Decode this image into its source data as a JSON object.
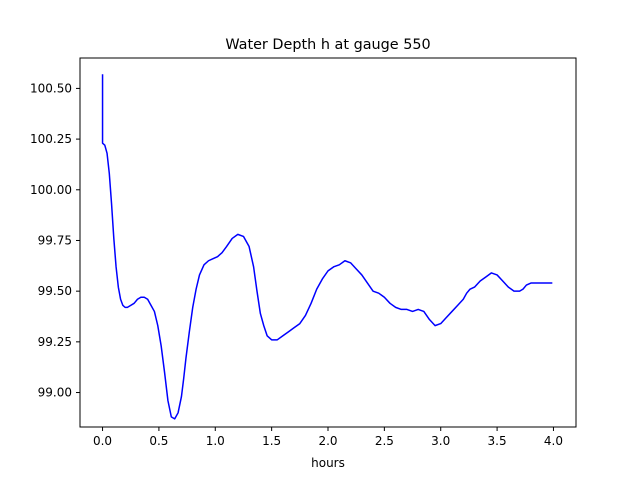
{
  "chart_data": {
    "type": "line",
    "title": "Water Depth h at gauge 550",
    "xlabel": "hours",
    "ylabel": "",
    "xlim": [
      -0.2,
      4.2
    ],
    "ylim": [
      98.83,
      100.65
    ],
    "xticks": [
      0.0,
      0.5,
      1.0,
      1.5,
      2.0,
      2.5,
      3.0,
      3.5,
      4.0
    ],
    "xtick_labels": [
      "0.0",
      "0.5",
      "1.0",
      "1.5",
      "2.0",
      "2.5",
      "3.0",
      "3.5",
      "4.0"
    ],
    "yticks": [
      99.0,
      99.25,
      99.5,
      99.75,
      100.0,
      100.25,
      100.5
    ],
    "ytick_labels": [
      "99.00",
      "99.25",
      "99.50",
      "99.75",
      "100.00",
      "100.25",
      "100.50"
    ],
    "grid": false,
    "series": [
      {
        "color": "#0000ff",
        "x": [
          0.0,
          0.0,
          0.0,
          0.02,
          0.04,
          0.06,
          0.08,
          0.1,
          0.12,
          0.14,
          0.16,
          0.18,
          0.2,
          0.22,
          0.25,
          0.28,
          0.31,
          0.34,
          0.37,
          0.4,
          0.43,
          0.46,
          0.49,
          0.52,
          0.55,
          0.58,
          0.61,
          0.64,
          0.67,
          0.7,
          0.72,
          0.74,
          0.77,
          0.8,
          0.83,
          0.86,
          0.9,
          0.94,
          0.98,
          1.02,
          1.06,
          1.1,
          1.15,
          1.2,
          1.25,
          1.3,
          1.34,
          1.37,
          1.4,
          1.43,
          1.46,
          1.5,
          1.55,
          1.6,
          1.65,
          1.7,
          1.75,
          1.8,
          1.85,
          1.9,
          1.95,
          2.0,
          2.05,
          2.1,
          2.15,
          2.2,
          2.25,
          2.3,
          2.35,
          2.4,
          2.45,
          2.5,
          2.55,
          2.6,
          2.65,
          2.7,
          2.75,
          2.8,
          2.85,
          2.9,
          2.95,
          3.0,
          3.05,
          3.1,
          3.15,
          3.2,
          3.23,
          3.26,
          3.3,
          3.35,
          3.4,
          3.45,
          3.5,
          3.55,
          3.6,
          3.65,
          3.7,
          3.73,
          3.76,
          3.8,
          3.84,
          3.88,
          3.92,
          3.96,
          3.99
        ],
        "y": [
          100.57,
          100.23,
          100.23,
          100.22,
          100.18,
          100.08,
          99.93,
          99.76,
          99.62,
          99.52,
          99.46,
          99.43,
          99.42,
          99.42,
          99.43,
          99.44,
          99.46,
          99.47,
          99.47,
          99.46,
          99.43,
          99.4,
          99.33,
          99.23,
          99.1,
          98.96,
          98.88,
          98.87,
          98.9,
          98.98,
          99.07,
          99.17,
          99.3,
          99.42,
          99.51,
          99.58,
          99.63,
          99.65,
          99.66,
          99.67,
          99.69,
          99.72,
          99.76,
          99.78,
          99.77,
          99.72,
          99.62,
          99.5,
          99.39,
          99.33,
          99.28,
          99.26,
          99.26,
          99.28,
          99.3,
          99.32,
          99.34,
          99.38,
          99.44,
          99.51,
          99.56,
          99.6,
          99.62,
          99.63,
          99.65,
          99.64,
          99.61,
          99.58,
          99.54,
          99.5,
          99.49,
          99.47,
          99.44,
          99.42,
          99.41,
          99.41,
          99.4,
          99.41,
          99.4,
          99.36,
          99.33,
          99.34,
          99.37,
          99.4,
          99.43,
          99.46,
          99.49,
          99.51,
          99.52,
          99.55,
          99.57,
          99.59,
          99.58,
          99.55,
          99.52,
          99.5,
          99.5,
          99.51,
          99.53,
          99.54,
          99.54,
          99.54,
          99.54,
          99.54,
          99.54
        ]
      }
    ]
  }
}
